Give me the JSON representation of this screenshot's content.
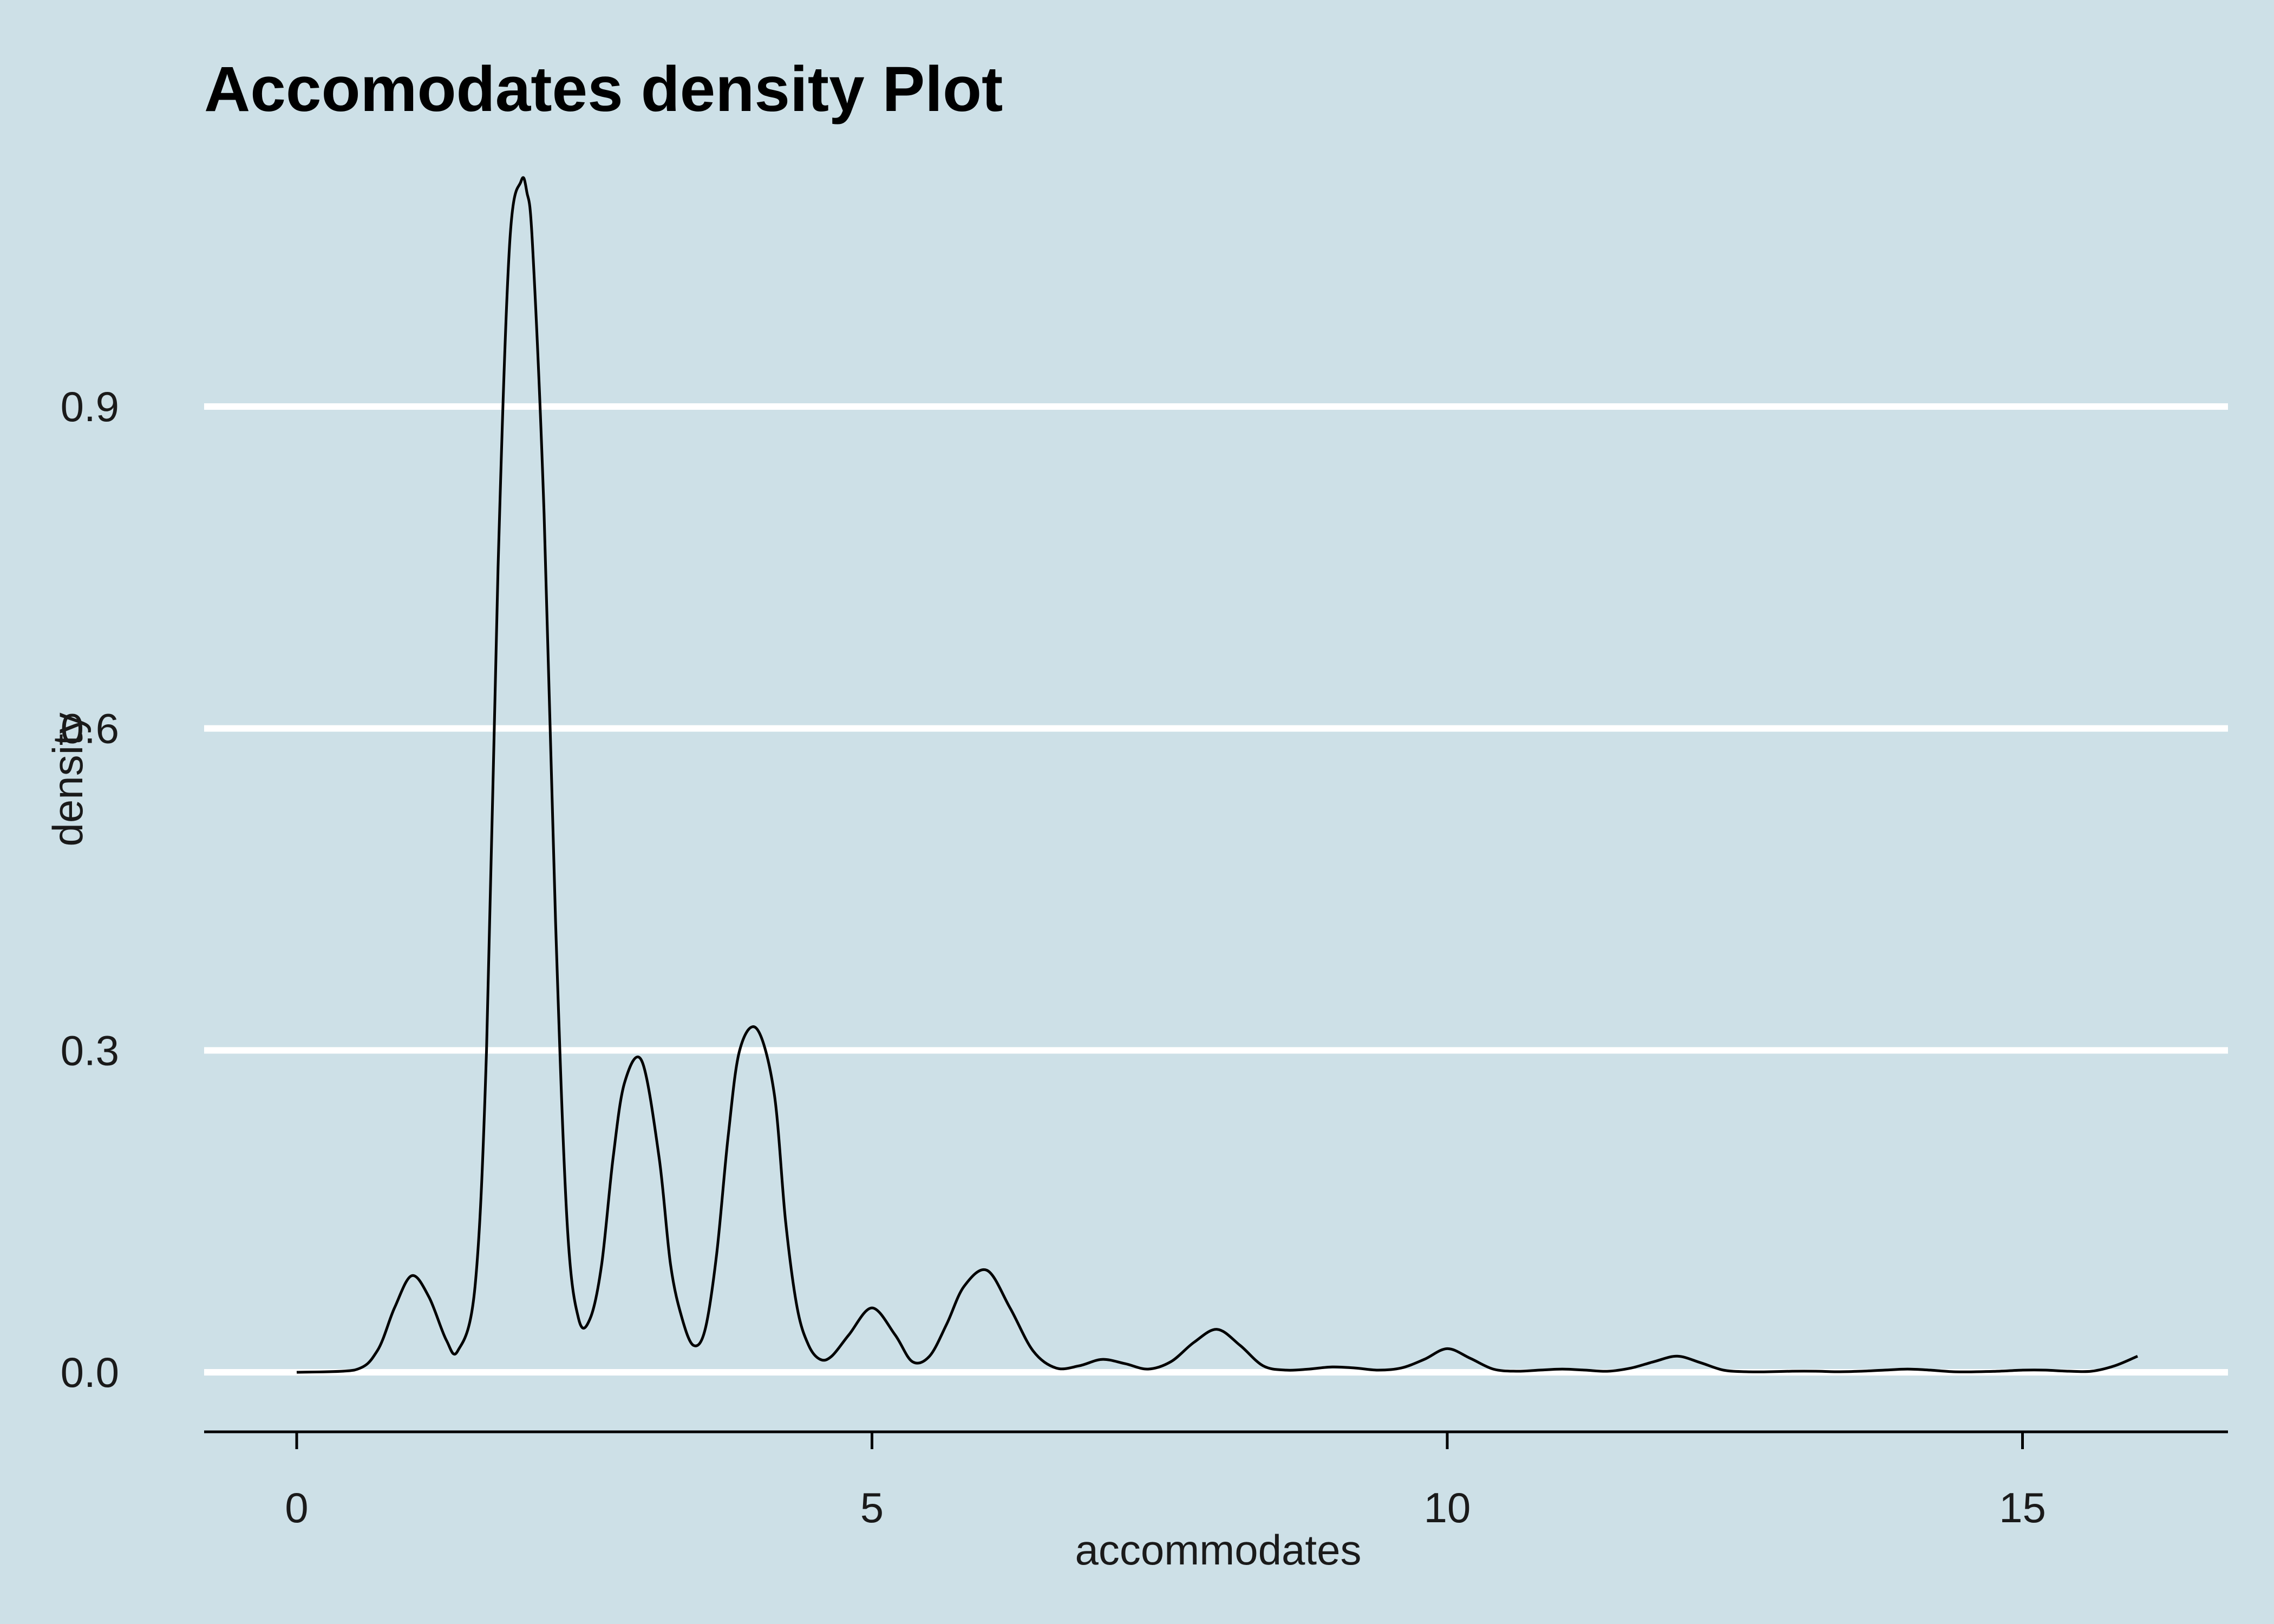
{
  "chart_data": {
    "type": "line",
    "title": "Accomodates density Plot",
    "xlabel": "accommodates",
    "ylabel": "density",
    "xlim": [
      -0.8,
      16.8
    ],
    "ylim": [
      -0.055,
      1.13
    ],
    "x_ticks": [
      0,
      5,
      10,
      15
    ],
    "x_tick_labels": [
      "0",
      "5",
      "10",
      "15"
    ],
    "y_ticks": [
      0.0,
      0.3,
      0.6,
      0.9
    ],
    "y_tick_labels": [
      "0.0",
      "0.3",
      "0.6",
      "0.9"
    ],
    "grid": "horizontal major lines, white",
    "legend": "none",
    "series": [
      {
        "color": "#000000",
        "x": [
          0.0,
          0.5,
          0.7,
          0.85,
          1.0,
          1.15,
          1.3,
          1.4,
          1.55,
          1.65,
          1.75,
          1.85,
          1.95,
          2.0,
          2.05,
          2.15,
          2.25,
          2.35,
          2.45,
          2.55,
          2.65,
          2.75,
          2.85,
          3.0,
          3.15,
          3.25,
          3.35,
          3.45,
          3.55,
          3.65,
          3.75,
          3.85,
          4.0,
          4.15,
          4.25,
          4.35,
          4.45,
          4.55,
          4.65,
          4.8,
          5.0,
          5.2,
          5.35,
          5.5,
          5.65,
          5.8,
          6.0,
          6.2,
          6.4,
          6.6,
          6.8,
          7.0,
          7.2,
          7.4,
          7.6,
          7.8,
          8.0,
          8.2,
          8.4,
          8.6,
          8.8,
          9.0,
          9.2,
          9.4,
          9.6,
          9.8,
          10.0,
          10.2,
          10.4,
          10.6,
          10.8,
          11.0,
          11.2,
          11.4,
          11.6,
          11.8,
          12.0,
          12.2,
          12.4,
          12.6,
          12.8,
          13.0,
          13.2,
          13.4,
          13.6,
          13.8,
          14.0,
          14.2,
          14.4,
          14.6,
          14.8,
          15.0,
          15.2,
          15.4,
          15.6,
          15.8,
          16.0
        ],
        "y": [
          0.0,
          0.002,
          0.02,
          0.06,
          0.09,
          0.07,
          0.03,
          0.02,
          0.08,
          0.3,
          0.75,
          1.05,
          1.11,
          1.1,
          1.05,
          0.8,
          0.42,
          0.14,
          0.05,
          0.05,
          0.1,
          0.2,
          0.27,
          0.29,
          0.2,
          0.1,
          0.05,
          0.025,
          0.04,
          0.11,
          0.22,
          0.3,
          0.32,
          0.26,
          0.14,
          0.06,
          0.025,
          0.012,
          0.015,
          0.035,
          0.06,
          0.035,
          0.01,
          0.015,
          0.045,
          0.08,
          0.095,
          0.06,
          0.02,
          0.004,
          0.006,
          0.012,
          0.008,
          0.003,
          0.01,
          0.028,
          0.04,
          0.025,
          0.006,
          0.002,
          0.003,
          0.005,
          0.004,
          0.002,
          0.004,
          0.012,
          0.022,
          0.013,
          0.003,
          0.001,
          0.002,
          0.003,
          0.002,
          0.001,
          0.004,
          0.01,
          0.015,
          0.009,
          0.002,
          0.0005,
          0.0005,
          0.001,
          0.001,
          0.0005,
          0.001,
          0.002,
          0.003,
          0.002,
          0.0005,
          0.0005,
          0.001,
          0.002,
          0.002,
          0.001,
          0.001,
          0.006,
          0.015
        ]
      }
    ]
  }
}
